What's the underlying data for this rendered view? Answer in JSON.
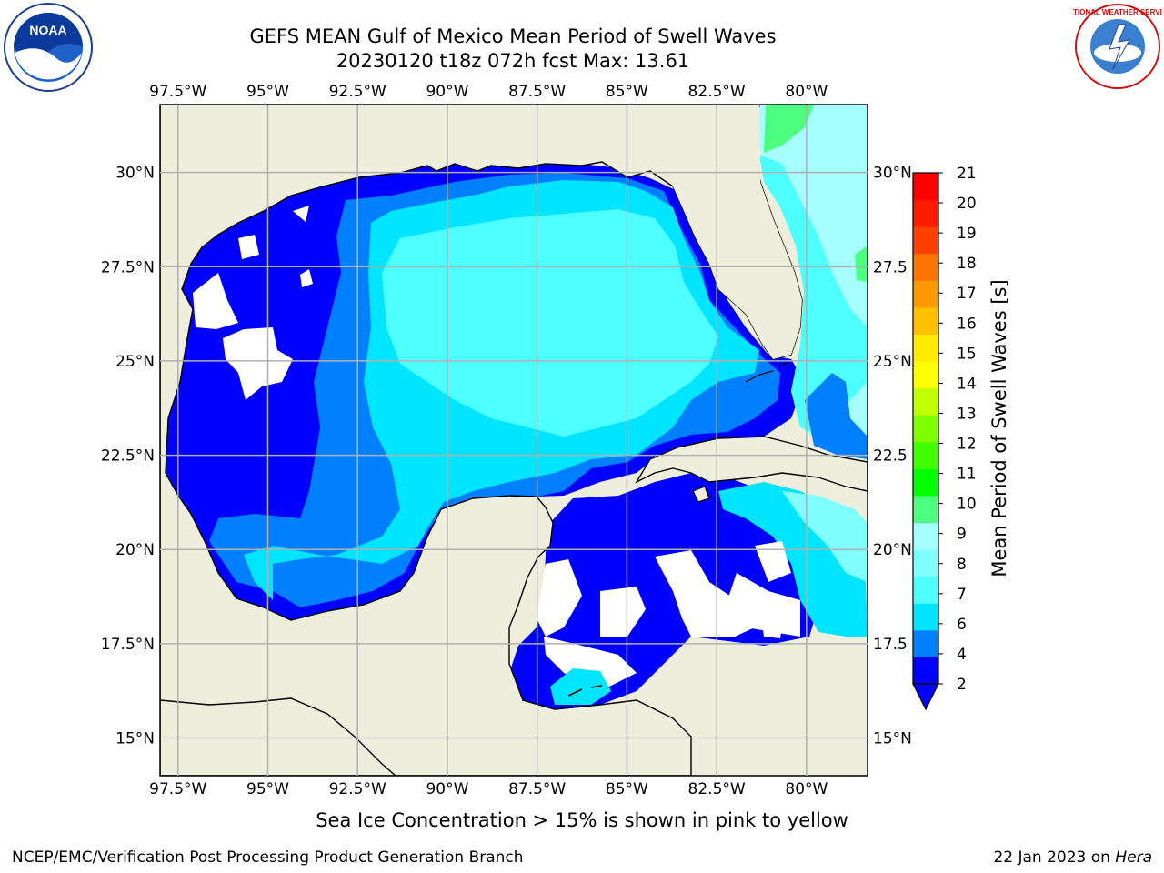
{
  "header": {
    "title_line1": "GEFS MEAN Gulf of Mexico Mean Period of Swell Waves",
    "title_line2": "20230120 t18z 072h fcst   Max: 13.61"
  },
  "footer": {
    "note": "Sea Ice Concentration > 15% is shown in pink to yellow",
    "credit": "NCEP/EMC/Verification Post Processing Product Generation Branch",
    "date_prefix": "22 Jan 2023 on ",
    "machine": "Hera"
  },
  "logos": {
    "left": "NOAA",
    "right": "NATIONAL WEATHER SERVICE"
  },
  "chart_data": {
    "type": "heatmap",
    "title": "GEFS MEAN Gulf of Mexico Mean Period of Swell Waves",
    "max_value": 13.61,
    "x_ticks": [
      "97.5°W",
      "95°W",
      "92.5°W",
      "90°W",
      "87.5°W",
      "85°W",
      "82.5°W",
      "80°W"
    ],
    "x_tick_values": [
      -97.5,
      -95,
      -92.5,
      -90,
      -87.5,
      -85,
      -82.5,
      -80
    ],
    "y_ticks_left": [
      "15°N",
      "17.5°N",
      "20°N",
      "22.5°N",
      "25°N",
      "27.5°N",
      "30°N"
    ],
    "y_ticks_right": [
      "15°N",
      "17.5",
      "20°N",
      "22.5",
      "25°N",
      "27.5",
      "30°N"
    ],
    "y_tick_values": [
      15,
      17.5,
      20,
      22.5,
      25,
      27.5,
      30
    ],
    "xlim": [
      -98,
      -78.3
    ],
    "ylim": [
      14,
      31.8
    ],
    "grid": true,
    "colorbar": {
      "label": "Mean Period of Swell Waves [s]",
      "tick_labels": [
        "2",
        "4",
        "6",
        "7",
        "8",
        "9",
        "10",
        "11",
        "12",
        "13",
        "14",
        "15",
        "16",
        "17",
        "18",
        "19",
        "20",
        "21"
      ],
      "colors": [
        "#0000ff",
        "#0080ff",
        "#00e5ff",
        "#4dffff",
        "#80ffff",
        "#a6ffff",
        "#4dff80",
        "#00ff00",
        "#40ff00",
        "#80ff00",
        "#c0ff00",
        "#ffff00",
        "#ffeb00",
        "#ffc000",
        "#ff9900",
        "#ff7300",
        "#ff4000",
        "#ff1a00",
        "#ff0000"
      ],
      "extend": "min"
    },
    "colors": {
      "land": "#eeeedc",
      "nodata": "#ffffff",
      "grid": "#b0b0b0"
    }
  }
}
